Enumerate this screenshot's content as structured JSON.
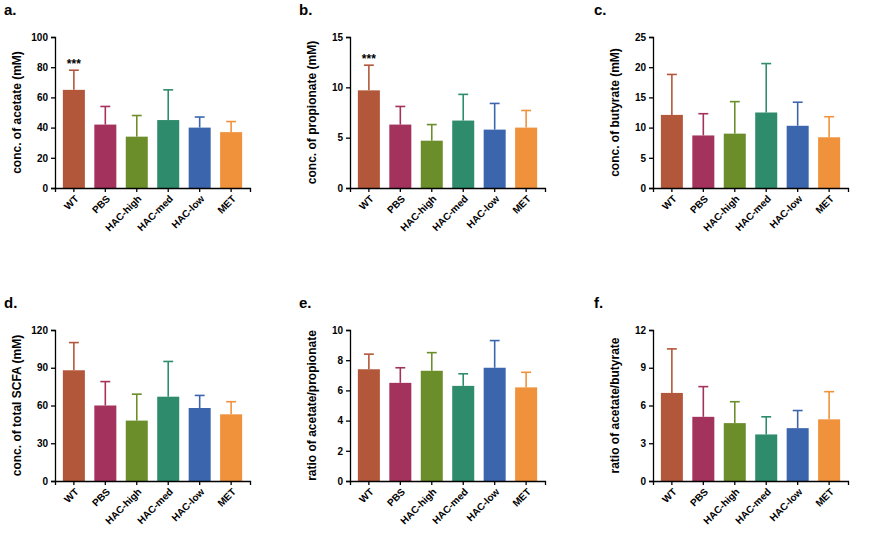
{
  "chart_data": [
    {
      "type": "bar",
      "panel_label": "a.",
      "y_label": "conc. of acetate (mM)",
      "categories": [
        "WT",
        "PBS",
        "HAC-high",
        "HAC-med",
        "HAC-low",
        "MET"
      ],
      "values": [
        65,
        42,
        34,
        45,
        40,
        37
      ],
      "errors": [
        13,
        12,
        14,
        20,
        7,
        7
      ],
      "colors": [
        "#b3573a",
        "#a3325c",
        "#6b8e2b",
        "#2e8c6c",
        "#3b66ad",
        "#f0923c"
      ],
      "ylim": [
        0,
        100
      ],
      "yticks": [
        0,
        20,
        40,
        60,
        80,
        100
      ],
      "annotations": [
        {
          "category": "WT",
          "text": "***"
        }
      ]
    },
    {
      "type": "bar",
      "panel_label": "b.",
      "y_label": "conc. of propionate (mM)",
      "categories": [
        "WT",
        "PBS",
        "HAC-high",
        "HAC-med",
        "HAC-low",
        "MET"
      ],
      "values": [
        9.7,
        6.3,
        4.7,
        6.7,
        5.8,
        6.0
      ],
      "errors": [
        2.5,
        1.8,
        1.6,
        2.6,
        2.6,
        1.7
      ],
      "colors": [
        "#b3573a",
        "#a3325c",
        "#6b8e2b",
        "#2e8c6c",
        "#3b66ad",
        "#f0923c"
      ],
      "ylim": [
        0,
        15
      ],
      "yticks": [
        0,
        5,
        10,
        15
      ],
      "annotations": [
        {
          "category": "WT",
          "text": "***"
        }
      ]
    },
    {
      "type": "bar",
      "panel_label": "c.",
      "y_label": "conc. of butyrate (mM)",
      "categories": [
        "WT",
        "PBS",
        "HAC-high",
        "HAC-med",
        "HAC-low",
        "MET"
      ],
      "values": [
        12.1,
        8.7,
        9.0,
        12.5,
        10.3,
        8.4
      ],
      "errors": [
        6.7,
        3.6,
        5.3,
        8.1,
        3.9,
        3.4
      ],
      "colors": [
        "#b3573a",
        "#a3325c",
        "#6b8e2b",
        "#2e8c6c",
        "#3b66ad",
        "#f0923c"
      ],
      "ylim": [
        0,
        25
      ],
      "yticks": [
        0,
        5,
        10,
        15,
        20,
        25
      ]
    },
    {
      "type": "bar",
      "panel_label": "d.",
      "y_label": "conc. of total SCFA (mM)",
      "categories": [
        "WT",
        "PBS",
        "HAC-high",
        "HAC-med",
        "HAC-low",
        "MET"
      ],
      "values": [
        88,
        60,
        48,
        67,
        58,
        53
      ],
      "errors": [
        22,
        19,
        21,
        28,
        10,
        10
      ],
      "colors": [
        "#b3573a",
        "#a3325c",
        "#6b8e2b",
        "#2e8c6c",
        "#3b66ad",
        "#f0923c"
      ],
      "ylim": [
        0,
        120
      ],
      "yticks": [
        0,
        30,
        60,
        90,
        120
      ]
    },
    {
      "type": "bar",
      "panel_label": "e.",
      "y_label": "ratio of acetate/propionate",
      "categories": [
        "WT",
        "PBS",
        "HAC-high",
        "HAC-med",
        "HAC-low",
        "MET"
      ],
      "values": [
        7.4,
        6.5,
        7.3,
        6.3,
        7.5,
        6.2
      ],
      "errors": [
        1.0,
        1.0,
        1.2,
        0.8,
        1.8,
        1.0
      ],
      "colors": [
        "#b3573a",
        "#a3325c",
        "#6b8e2b",
        "#2e8c6c",
        "#3b66ad",
        "#f0923c"
      ],
      "ylim": [
        0,
        10
      ],
      "yticks": [
        0,
        2,
        4,
        6,
        8,
        10
      ]
    },
    {
      "type": "bar",
      "panel_label": "f.",
      "y_label": "ratio of acetate/butyrate",
      "categories": [
        "WT",
        "PBS",
        "HAC-high",
        "HAC-med",
        "HAC-low",
        "MET"
      ],
      "values": [
        7.0,
        5.1,
        4.6,
        3.7,
        4.2,
        4.9
      ],
      "errors": [
        3.5,
        2.4,
        1.7,
        1.4,
        1.4,
        2.2
      ],
      "colors": [
        "#b3573a",
        "#a3325c",
        "#6b8e2b",
        "#2e8c6c",
        "#3b66ad",
        "#f0923c"
      ],
      "ylim": [
        0,
        12
      ],
      "yticks": [
        0,
        3,
        6,
        9,
        12
      ]
    }
  ]
}
